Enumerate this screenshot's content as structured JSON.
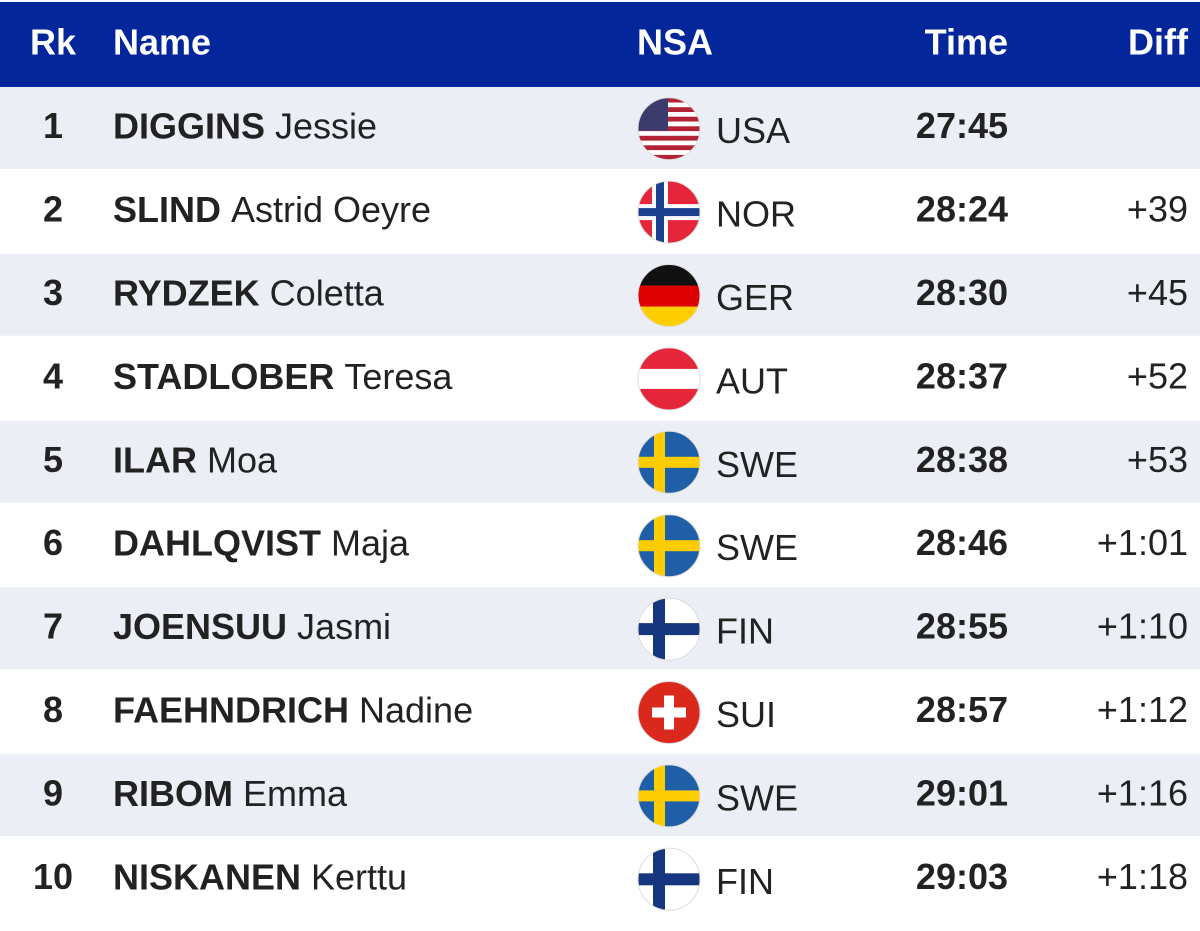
{
  "table": {
    "header": [
      "Rk",
      "Name",
      "NSA",
      "Time",
      "Diff"
    ],
    "rows": [
      {
        "rank": 1,
        "surname": "DIGGINS",
        "given": "Jessie",
        "nsa": "USA",
        "time": "27:45",
        "diff": null
      },
      {
        "rank": 2,
        "surname": "SLIND",
        "given": "Astrid Oeyre",
        "nsa": "NOR",
        "time": "28:24",
        "diff": "+39"
      },
      {
        "rank": 3,
        "surname": "RYDZEK",
        "given": "Coletta",
        "nsa": "GER",
        "time": "28:30",
        "diff": "+45"
      },
      {
        "rank": 4,
        "surname": "STADLOBER",
        "given": "Teresa",
        "nsa": "AUT",
        "time": "28:37",
        "diff": "+52"
      },
      {
        "rank": 5,
        "surname": "ILAR",
        "given": "Moa",
        "nsa": "SWE",
        "time": "28:38",
        "diff": "+53"
      },
      {
        "rank": 6,
        "surname": "DAHLQVIST",
        "given": "Maja",
        "nsa": "SWE",
        "time": "28:46",
        "diff": "+1:01"
      },
      {
        "rank": 7,
        "surname": "JOENSUU",
        "given": "Jasmi",
        "nsa": "FIN",
        "time": "28:55",
        "diff": "+1:10"
      },
      {
        "rank": 8,
        "surname": "FAEHNDRICH",
        "given": "Nadine",
        "nsa": "SUI",
        "time": "28:57",
        "diff": "+1:12"
      },
      {
        "rank": 9,
        "surname": "RIBOM",
        "given": "Emma",
        "nsa": "SWE",
        "time": "29:01",
        "diff": "+1:16"
      },
      {
        "rank": 10,
        "surname": "NISKANEN",
        "given": "Kerttu",
        "nsa": "FIN",
        "time": "29:03",
        "diff": "+1:18"
      }
    ]
  }
}
